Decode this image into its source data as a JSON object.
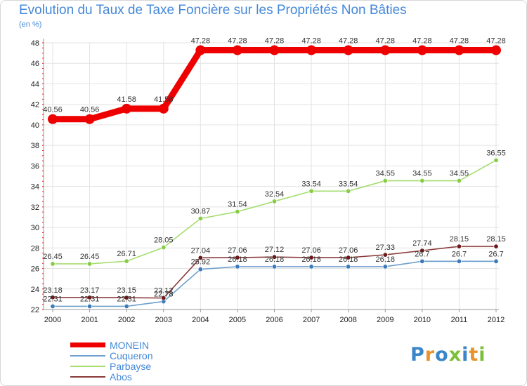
{
  "chart_data": {
    "type": "line",
    "title": "Evolution du Taux de Taxe Foncière sur les Propriétés Non Bâties",
    "unit_label": "(en %)",
    "ylim": [
      22,
      48
    ],
    "y_ticks": [
      22,
      24,
      26,
      28,
      30,
      32,
      34,
      36,
      38,
      40,
      42,
      44,
      46,
      48
    ],
    "categories": [
      "2000",
      "2001",
      "2002",
      "2003",
      "2004",
      "2005",
      "2006",
      "2007",
      "2008",
      "2009",
      "2010",
      "2011",
      "2012"
    ],
    "series": [
      {
        "name": "MONEIN",
        "color": "#ee0000",
        "marker": "#ee0000",
        "emphasis": true,
        "values": [
          40.56,
          40.56,
          41.58,
          41.58,
          47.28,
          47.28,
          47.28,
          47.28,
          47.28,
          47.28,
          47.28,
          47.28,
          47.28
        ],
        "labels": [
          "40.56",
          "40.56",
          "41.58",
          "41.58",
          "47.28",
          "47.28",
          "47.28",
          "47.28",
          "47.28",
          "47.28",
          "47.28",
          "47.28",
          "47.28"
        ]
      },
      {
        "name": "Cuqueron",
        "color": "#6e9fcc",
        "marker": "#3d7ab8",
        "values": [
          22.31,
          22.31,
          22.31,
          22.78,
          25.92,
          26.18,
          26.18,
          26.18,
          26.18,
          26.18,
          26.7,
          26.7,
          26.7
        ],
        "labels": [
          "22.31",
          "22.31",
          "22.31",
          "22.78",
          "25.92",
          "26.18",
          "26.18",
          "26.18",
          "26.18",
          "26.18",
          "26.7",
          "26.7",
          "26.7"
        ]
      },
      {
        "name": "Parbayse",
        "color": "#a6dd70",
        "marker": "#86cc44",
        "values": [
          26.45,
          26.45,
          26.71,
          28.05,
          30.87,
          31.54,
          32.54,
          33.54,
          33.54,
          34.55,
          34.55,
          34.55,
          36.55
        ],
        "labels": [
          "26.45",
          "26.45",
          "26.71",
          "28.05",
          "30.87",
          "31.54",
          "32.54",
          "33.54",
          "33.54",
          "34.55",
          "34.55",
          "34.55",
          "36.55"
        ]
      },
      {
        "name": "Abos",
        "color": "#8b3a3a",
        "marker": "#6b1a1a",
        "values": [
          23.18,
          23.17,
          23.15,
          23.12,
          27.04,
          27.06,
          27.12,
          27.06,
          27.06,
          27.33,
          27.74,
          28.15,
          28.15
        ],
        "labels": [
          "23.18",
          "23.17",
          "23.15",
          "23.12",
          "27.04",
          "27.06",
          "27.12",
          "27.06",
          "27.06",
          "27.33",
          "27.74",
          "28.15",
          "28.15"
        ]
      }
    ]
  },
  "logo": {
    "l1": "P",
    "l2": "r",
    "l3": "o",
    "l4": "x",
    "l5": "i",
    "l6": "t",
    "l7": "i"
  }
}
